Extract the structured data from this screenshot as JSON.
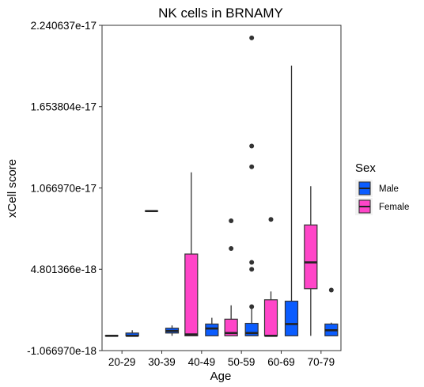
{
  "chart_data": {
    "type": "boxplot",
    "title": "NK cells in BRNAMY",
    "xlabel": "Age",
    "ylabel": "xCell score",
    "categories": [
      "20-29",
      "30-39",
      "40-49",
      "50-59",
      "60-69",
      "70-79"
    ],
    "ylim": [
      -1.06697e-18,
      2.240637e-17
    ],
    "y_ticks": [
      -1.06697e-18,
      4.801366e-18,
      1.06697e-17,
      1.653804e-17,
      2.240637e-17
    ],
    "y_tick_labels": [
      "-1.066970e-18",
      "4.801366e-18",
      "1.066970e-17",
      "1.653804e-17",
      "2.240637e-17"
    ],
    "grid": false,
    "legend": {
      "title": "Sex",
      "position": "right",
      "entries": [
        {
          "name": "Male",
          "color": "#0a5cff"
        },
        {
          "name": "Female",
          "color": "#ff45c8"
        }
      ]
    },
    "series": [
      {
        "name": "Male",
        "color": "#0a5cff",
        "boxes": [
          {
            "category": "20-29",
            "whisker_low": 0,
            "q1": 0,
            "median": 0,
            "q3": 2e-19,
            "whisker_high": 4e-19,
            "outliers": []
          },
          {
            "category": "30-39",
            "whisker_low": 0,
            "q1": 2e-19,
            "median": 3.5e-19,
            "q3": 5.5e-19,
            "whisker_high": 7.5e-19,
            "outliers": []
          },
          {
            "category": "40-49",
            "whisker_low": 0,
            "q1": 0,
            "median": 5.3e-19,
            "q3": 8.5e-19,
            "whisker_high": 1.3e-18,
            "outliers": []
          },
          {
            "category": "50-59",
            "whisker_low": 0,
            "q1": 0,
            "median": 2e-19,
            "q3": 9e-19,
            "whisker_high": 2e-18,
            "outliers": [
              2.1e-18,
              4.8e-18,
              5.3e-18,
              1.22e-17,
              1.37e-17,
              2.15e-17
            ]
          },
          {
            "category": "60-69",
            "whisker_low": 0,
            "q1": 0,
            "median": 8.5e-19,
            "q3": 2.5e-18,
            "whisker_high": 1.95e-17,
            "outliers": []
          },
          {
            "category": "70-79",
            "whisker_low": 0,
            "q1": 0,
            "median": 4e-19,
            "q3": 8.5e-19,
            "whisker_high": 9.5e-19,
            "outliers": [
              3.3e-18
            ]
          }
        ]
      },
      {
        "name": "Female",
        "color": "#ff45c8",
        "boxes": [
          {
            "category": "20-29",
            "whisker_low": 0,
            "q1": 0,
            "median": 0,
            "q3": 0,
            "whisker_high": 0,
            "outliers": []
          },
          {
            "category": "30-39",
            "whisker_low": 9e-18,
            "q1": 9e-18,
            "median": 9e-18,
            "q3": 9e-18,
            "whisker_high": 9e-18,
            "outliers": []
          },
          {
            "category": "40-49",
            "whisker_low": 0,
            "q1": 0,
            "median": 1e-19,
            "q3": 5.9e-18,
            "whisker_high": 1.18e-17,
            "outliers": []
          },
          {
            "category": "50-59",
            "whisker_low": 0,
            "q1": 0,
            "median": 2e-19,
            "q3": 1.2e-18,
            "whisker_high": 2.2e-18,
            "outliers": [
              6.3e-18,
              8.3e-18
            ]
          },
          {
            "category": "60-69",
            "whisker_low": 0,
            "q1": 0,
            "median": 0,
            "q3": 2.6e-18,
            "whisker_high": 3.2e-18,
            "outliers": [
              8.4e-18
            ]
          },
          {
            "category": "70-79",
            "whisker_low": 0,
            "q1": 3.4e-18,
            "median": 5.3e-18,
            "q3": 8e-18,
            "whisker_high": 1.08e-17,
            "outliers": []
          }
        ]
      }
    ]
  }
}
